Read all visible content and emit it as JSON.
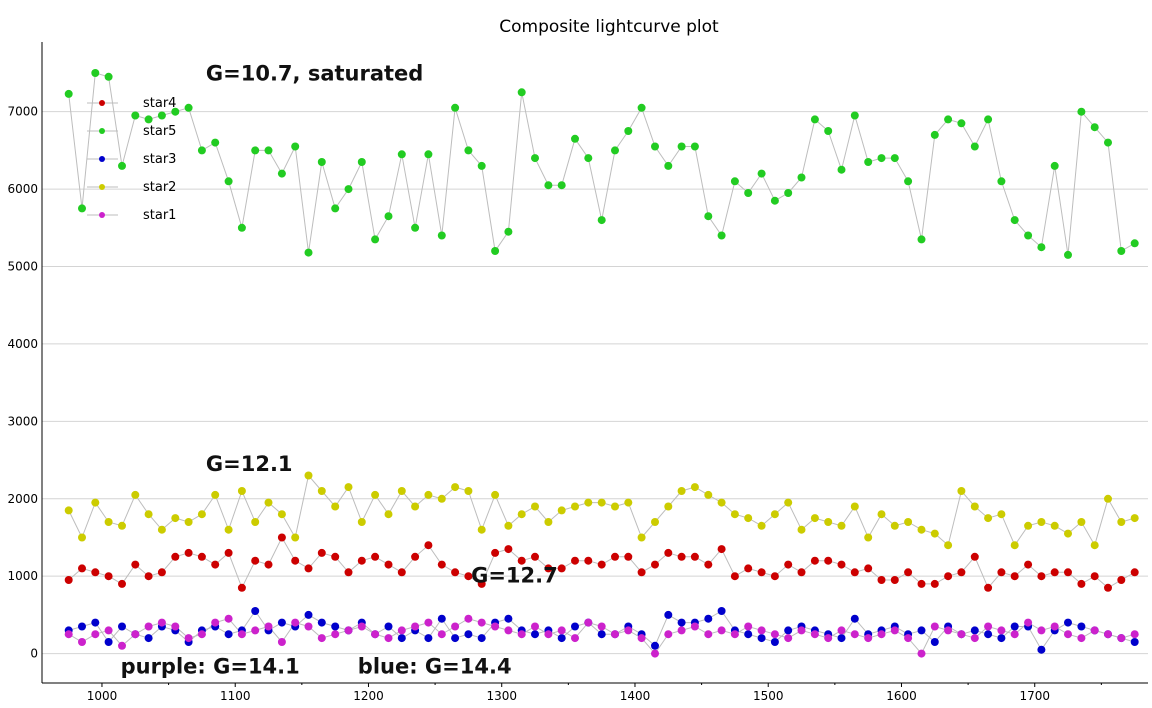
{
  "chart_data": {
    "type": "scatter",
    "title": "Composite lightcurve plot",
    "xlabel": "",
    "ylabel": "",
    "xlim": [
      955,
      1785
    ],
    "ylim": [
      -380,
      7900
    ],
    "xticks": [
      1000,
      1100,
      1200,
      1300,
      1400,
      1500,
      1600,
      1700
    ],
    "yticks": [
      0,
      1000,
      2000,
      3000,
      4000,
      5000,
      6000,
      7000
    ],
    "grid": "horizontal",
    "legend_position": "top-left",
    "legend": [
      "star4",
      "star5",
      "star3",
      "star2",
      "star1"
    ],
    "series": [
      {
        "name": "star5",
        "color": "#22cc22",
        "x": [
          975,
          985,
          995,
          1005,
          1015,
          1025,
          1035,
          1045,
          1055,
          1065,
          1075,
          1085,
          1095,
          1105,
          1115,
          1125,
          1135,
          1145,
          1155,
          1165,
          1175,
          1185,
          1195,
          1205,
          1215,
          1225,
          1235,
          1245,
          1255,
          1265,
          1275,
          1285,
          1295,
          1305,
          1315,
          1325,
          1335,
          1345,
          1355,
          1365,
          1375,
          1385,
          1395,
          1405,
          1415,
          1425,
          1435,
          1445,
          1455,
          1465,
          1475,
          1485,
          1495,
          1505,
          1515,
          1525,
          1535,
          1545,
          1555,
          1565,
          1575,
          1585,
          1595,
          1605,
          1615,
          1625,
          1635,
          1645,
          1655,
          1665,
          1675,
          1685,
          1695,
          1705,
          1715,
          1725,
          1735,
          1745,
          1755,
          1765,
          1775
        ],
        "y": [
          7230,
          5750,
          7500,
          7450,
          6300,
          6950,
          6900,
          6950,
          7000,
          7050,
          6500,
          6600,
          6100,
          5500,
          6500,
          6500,
          6200,
          6550,
          5180,
          6350,
          5750,
          6000,
          6350,
          5350,
          5650,
          6450,
          5500,
          6450,
          5400,
          7050,
          6500,
          6300,
          5200,
          5450,
          7250,
          6400,
          6050,
          6050,
          6650,
          6400,
          5600,
          6500,
          6750,
          7050,
          6550,
          6300,
          6550,
          6550,
          5650,
          5400,
          6100,
          5950,
          6200,
          5850,
          5950,
          6150,
          6900,
          6750,
          6250,
          6950,
          6350,
          6400,
          6400,
          6100,
          5350,
          6700,
          6900,
          6850,
          6550,
          6900,
          6100,
          5600,
          5400,
          5250,
          6300,
          5150,
          7000,
          6800,
          6600,
          5200,
          5300
        ]
      },
      {
        "name": "star2",
        "color": "#cccc00",
        "x": [
          975,
          985,
          995,
          1005,
          1015,
          1025,
          1035,
          1045,
          1055,
          1065,
          1075,
          1085,
          1095,
          1105,
          1115,
          1125,
          1135,
          1145,
          1155,
          1165,
          1175,
          1185,
          1195,
          1205,
          1215,
          1225,
          1235,
          1245,
          1255,
          1265,
          1275,
          1285,
          1295,
          1305,
          1315,
          1325,
          1335,
          1345,
          1355,
          1365,
          1375,
          1385,
          1395,
          1405,
          1415,
          1425,
          1435,
          1445,
          1455,
          1465,
          1475,
          1485,
          1495,
          1505,
          1515,
          1525,
          1535,
          1545,
          1555,
          1565,
          1575,
          1585,
          1595,
          1605,
          1615,
          1625,
          1635,
          1645,
          1655,
          1665,
          1675,
          1685,
          1695,
          1705,
          1715,
          1725,
          1735,
          1745,
          1755,
          1765,
          1775
        ],
        "y": [
          1850,
          1500,
          1950,
          1700,
          1650,
          2050,
          1800,
          1600,
          1750,
          1700,
          1800,
          2050,
          1600,
          2100,
          1700,
          1950,
          1800,
          1500,
          2300,
          2100,
          1900,
          2150,
          1700,
          2050,
          1800,
          2100,
          1900,
          2050,
          2000,
          2150,
          2100,
          1600,
          2050,
          1650,
          1800,
          1900,
          1700,
          1850,
          1900,
          1950,
          1950,
          1900,
          1950,
          1500,
          1700,
          1900,
          2100,
          2150,
          2050,
          1950,
          1800,
          1750,
          1650,
          1800,
          1950,
          1600,
          1750,
          1700,
          1650,
          1900,
          1500,
          1800,
          1650,
          1700,
          1600,
          1550,
          1400,
          2100,
          1900,
          1750,
          1800,
          1400,
          1650,
          1700,
          1650,
          1550,
          1700,
          1400,
          2000,
          1700,
          1750
        ]
      },
      {
        "name": "star4",
        "color": "#cc0000",
        "x": [
          975,
          985,
          995,
          1005,
          1015,
          1025,
          1035,
          1045,
          1055,
          1065,
          1075,
          1085,
          1095,
          1105,
          1115,
          1125,
          1135,
          1145,
          1155,
          1165,
          1175,
          1185,
          1195,
          1205,
          1215,
          1225,
          1235,
          1245,
          1255,
          1265,
          1275,
          1285,
          1295,
          1305,
          1315,
          1325,
          1335,
          1345,
          1355,
          1365,
          1375,
          1385,
          1395,
          1405,
          1415,
          1425,
          1435,
          1445,
          1455,
          1465,
          1475,
          1485,
          1495,
          1505,
          1515,
          1525,
          1535,
          1545,
          1555,
          1565,
          1575,
          1585,
          1595,
          1605,
          1615,
          1625,
          1635,
          1645,
          1655,
          1665,
          1675,
          1685,
          1695,
          1705,
          1715,
          1725,
          1735,
          1745,
          1755,
          1765,
          1775
        ],
        "y": [
          950,
          1100,
          1050,
          1000,
          900,
          1150,
          1000,
          1050,
          1250,
          1300,
          1250,
          1150,
          1300,
          850,
          1200,
          1150,
          1500,
          1200,
          1100,
          1300,
          1250,
          1050,
          1200,
          1250,
          1150,
          1050,
          1250,
          1400,
          1150,
          1050,
          1000,
          900,
          1300,
          1350,
          1200,
          1250,
          1100,
          1100,
          1200,
          1200,
          1150,
          1250,
          1250,
          1050,
          1150,
          1300,
          1250,
          1250,
          1150,
          1350,
          1000,
          1100,
          1050,
          1000,
          1150,
          1050,
          1200,
          1200,
          1150,
          1050,
          1100,
          950,
          950,
          1050,
          900,
          900,
          1000,
          1050,
          1250,
          850,
          1050,
          1000,
          1150,
          1000,
          1050,
          1050,
          900,
          1000,
          850,
          950,
          1050
        ]
      },
      {
        "name": "star3",
        "color": "#0000cc",
        "x": [
          975,
          985,
          995,
          1005,
          1015,
          1025,
          1035,
          1045,
          1055,
          1065,
          1075,
          1085,
          1095,
          1105,
          1115,
          1125,
          1135,
          1145,
          1155,
          1165,
          1175,
          1185,
          1195,
          1205,
          1215,
          1225,
          1235,
          1245,
          1255,
          1265,
          1275,
          1285,
          1295,
          1305,
          1315,
          1325,
          1335,
          1345,
          1355,
          1365,
          1375,
          1385,
          1395,
          1405,
          1415,
          1425,
          1435,
          1445,
          1455,
          1465,
          1475,
          1485,
          1495,
          1505,
          1515,
          1525,
          1535,
          1545,
          1555,
          1565,
          1575,
          1585,
          1595,
          1605,
          1615,
          1625,
          1635,
          1645,
          1655,
          1665,
          1675,
          1685,
          1695,
          1705,
          1715,
          1725,
          1735,
          1745,
          1755,
          1765,
          1775
        ],
        "y": [
          300,
          350,
          400,
          150,
          350,
          250,
          200,
          350,
          300,
          150,
          300,
          350,
          250,
          300,
          550,
          300,
          400,
          350,
          500,
          400,
          350,
          300,
          400,
          250,
          350,
          200,
          300,
          200,
          450,
          200,
          250,
          200,
          400,
          450,
          300,
          250,
          300,
          200,
          350,
          400,
          250,
          250,
          350,
          250,
          100,
          500,
          400,
          400,
          450,
          550,
          300,
          250,
          200,
          150,
          300,
          350,
          300,
          250,
          200,
          450,
          250,
          300,
          350,
          250,
          300,
          150,
          350,
          250,
          300,
          250,
          200,
          350,
          350,
          50,
          300,
          400,
          350,
          300,
          250,
          200,
          150
        ]
      },
      {
        "name": "star1",
        "color": "#cc22cc",
        "x": [
          975,
          985,
          995,
          1005,
          1015,
          1025,
          1035,
          1045,
          1055,
          1065,
          1075,
          1085,
          1095,
          1105,
          1115,
          1125,
          1135,
          1145,
          1155,
          1165,
          1175,
          1185,
          1195,
          1205,
          1215,
          1225,
          1235,
          1245,
          1255,
          1265,
          1275,
          1285,
          1295,
          1305,
          1315,
          1325,
          1335,
          1345,
          1355,
          1365,
          1375,
          1385,
          1395,
          1405,
          1415,
          1425,
          1435,
          1445,
          1455,
          1465,
          1475,
          1485,
          1495,
          1505,
          1515,
          1525,
          1535,
          1545,
          1555,
          1565,
          1575,
          1585,
          1595,
          1605,
          1615,
          1625,
          1635,
          1645,
          1655,
          1665,
          1675,
          1685,
          1695,
          1705,
          1715,
          1725,
          1735,
          1745,
          1755,
          1765,
          1775
        ],
        "y": [
          250,
          150,
          250,
          300,
          100,
          250,
          350,
          400,
          350,
          200,
          250,
          400,
          450,
          250,
          300,
          350,
          150,
          400,
          350,
          200,
          250,
          300,
          350,
          250,
          200,
          300,
          350,
          400,
          250,
          350,
          450,
          400,
          350,
          300,
          250,
          350,
          250,
          300,
          200,
          400,
          350,
          250,
          300,
          200,
          0,
          250,
          300,
          350,
          250,
          300,
          250,
          350,
          300,
          250,
          200,
          300,
          250,
          200,
          300,
          250,
          200,
          250,
          300,
          200,
          0,
          350,
          300,
          250,
          200,
          350,
          300,
          250,
          400,
          300,
          350,
          250,
          200,
          300,
          250,
          200,
          250
        ]
      }
    ],
    "annotations": [
      {
        "text": "G=10.7, saturated",
        "x": 1078,
        "y": 7400
      },
      {
        "text": "G=12.1",
        "x": 1078,
        "y": 2360
      },
      {
        "text": "G=12.7",
        "x": 1277,
        "y": 915
      },
      {
        "text": "purple: G=14.1",
        "x": 1014,
        "y": -260
      },
      {
        "text": "blue: G=14.4",
        "x": 1192,
        "y": -260
      }
    ]
  }
}
